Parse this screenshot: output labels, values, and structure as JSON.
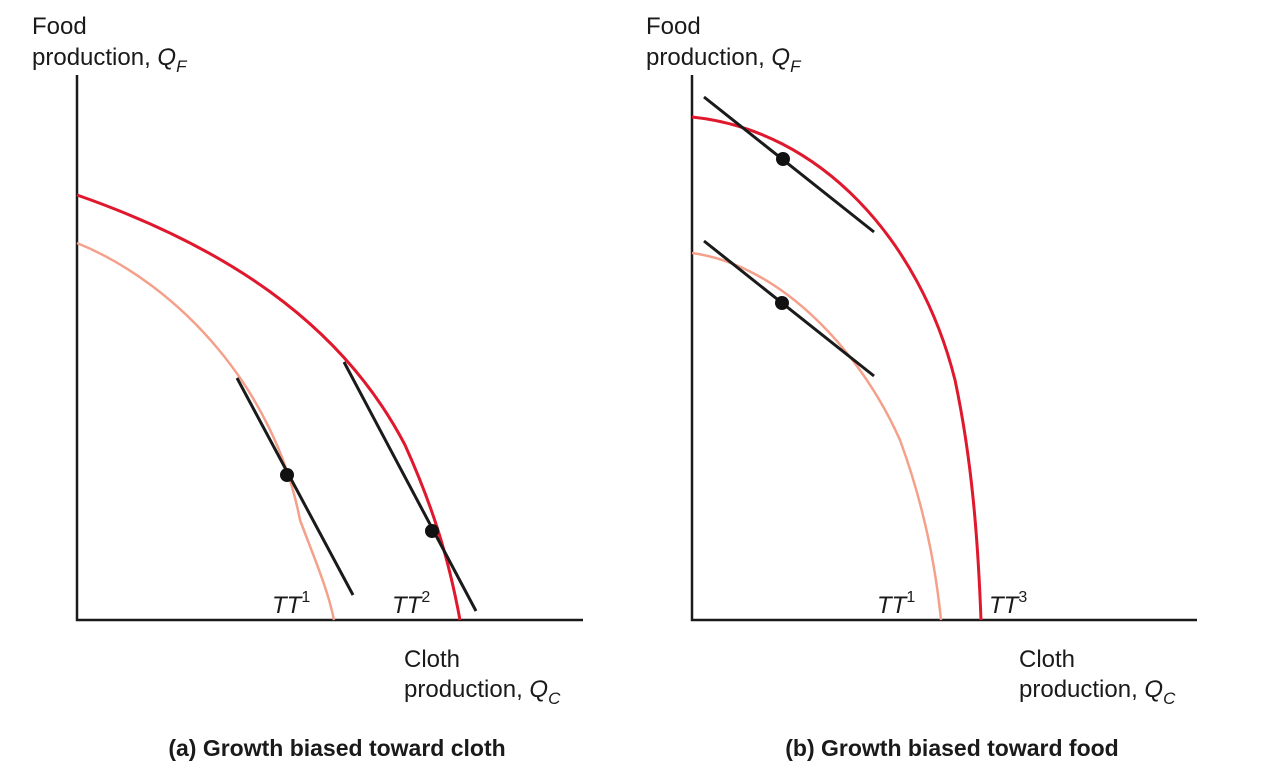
{
  "panel_a": {
    "y_label_line1": "Food",
    "y_label_line2": "production,",
    "y_var": "Q",
    "y_sub": "F",
    "x_label_line1": "Cloth",
    "x_label_line2": "production,",
    "x_var": "Q",
    "x_sub": "C",
    "inner_curve_label": "TT",
    "inner_curve_sup": "1",
    "outer_curve_label": "TT",
    "outer_curve_sup": "2",
    "caption": "(a) Growth biased toward cloth"
  },
  "panel_b": {
    "y_label_line1": "Food",
    "y_label_line2": "production,",
    "y_var": "Q",
    "y_sub": "F",
    "x_label_line1": "Cloth",
    "x_label_line2": "production,",
    "x_var": "Q",
    "x_sub": "C",
    "inner_curve_label": "TT",
    "inner_curve_sup": "1",
    "outer_curve_label": "TT",
    "outer_curve_sup": "3",
    "caption": "(b) Growth biased toward food"
  },
  "colors": {
    "axis": "#1a1a1a",
    "original_frontier": "#f4a08a",
    "new_frontier": "#e0182d",
    "tangent": "#1a1a1a",
    "point": "#111111"
  }
}
